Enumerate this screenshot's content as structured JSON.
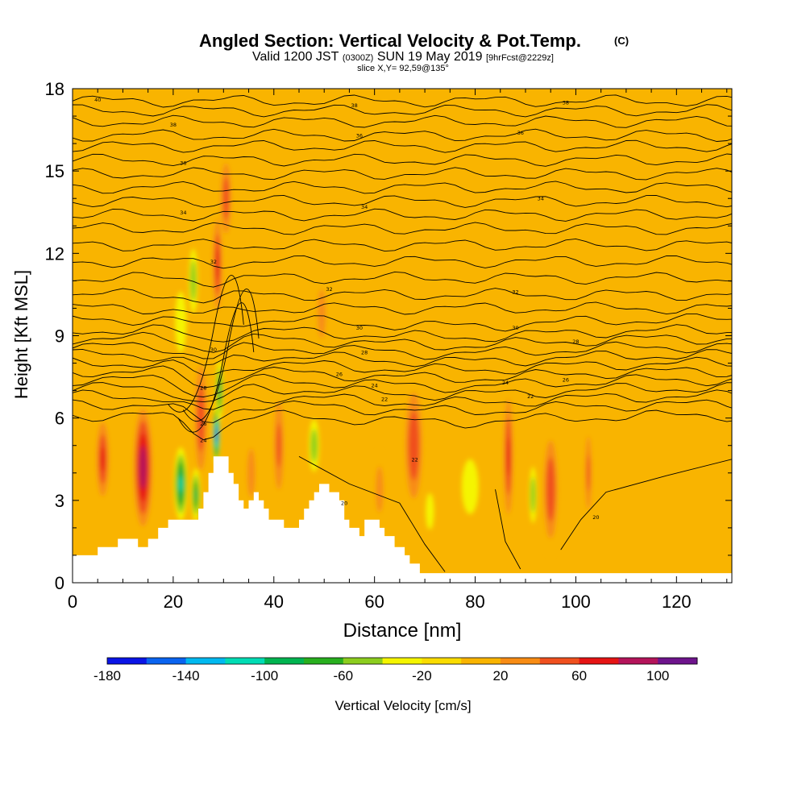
{
  "chart_data": {
    "type": "heatmap",
    "title": "Angled Section: Vertical Velocity & Pot.Temp.",
    "title_suffix": "(C)",
    "subtitle_main_a": "Valid 1200 JST",
    "subtitle_small_a": "(0300Z)",
    "subtitle_main_b": "SUN 19 May 2019",
    "subtitle_small_b": "[9hrFcst@2229z]",
    "slice_label": "slice X,Y= 92,59@135°",
    "xlabel": "Distance [nm]",
    "ylabel": "Height [Kft MSL]",
    "xlim": [
      0,
      131
    ],
    "ylim": [
      0,
      18
    ],
    "x_ticks": [
      0,
      20,
      40,
      60,
      80,
      100,
      120
    ],
    "y_ticks": [
      0,
      3,
      6,
      9,
      12,
      15,
      18
    ],
    "colorbar": {
      "label": "Vertical Velocity [cm/s]",
      "tick_labels": [
        "-180",
        "-140",
        "-100",
        "-60",
        "-20",
        "20",
        "60",
        "100"
      ],
      "bins": [
        {
          "from": -180,
          "to": -160,
          "color": "#0a14e6"
        },
        {
          "from": -160,
          "to": -140,
          "color": "#0a64f0"
        },
        {
          "from": -140,
          "to": -120,
          "color": "#00b9f0"
        },
        {
          "from": -120,
          "to": -100,
          "color": "#00dcb4"
        },
        {
          "from": -100,
          "to": -80,
          "color": "#00b450"
        },
        {
          "from": -80,
          "to": -60,
          "color": "#28af1e"
        },
        {
          "from": -60,
          "to": -40,
          "color": "#8ccd1e"
        },
        {
          "from": -40,
          "to": -20,
          "color": "#f5f500"
        },
        {
          "from": -20,
          "to": 0,
          "color": "#fadc00"
        },
        {
          "from": 0,
          "to": 20,
          "color": "#f9b400"
        },
        {
          "from": 20,
          "to": 40,
          "color": "#f88c14"
        },
        {
          "from": 40,
          "to": 60,
          "color": "#f0501e"
        },
        {
          "from": 60,
          "to": 80,
          "color": "#e61414"
        },
        {
          "from": 80,
          "to": 100,
          "color": "#b4145a"
        },
        {
          "from": 100,
          "to": 120,
          "color": "#6e148c"
        }
      ]
    },
    "terrain": [
      [
        0,
        1.0
      ],
      [
        2,
        1.0
      ],
      [
        5,
        1.0
      ],
      [
        5,
        1.3
      ],
      [
        9,
        1.3
      ],
      [
        9,
        1.6
      ],
      [
        13,
        1.6
      ],
      [
        13,
        1.3
      ],
      [
        15,
        1.3
      ],
      [
        15,
        1.6
      ],
      [
        17,
        1.6
      ],
      [
        17,
        2.0
      ],
      [
        19,
        2.0
      ],
      [
        19,
        2.3
      ],
      [
        25,
        2.3
      ],
      [
        25,
        2.7
      ],
      [
        26,
        2.7
      ],
      [
        26,
        3.3
      ],
      [
        27,
        3.3
      ],
      [
        27,
        4.0
      ],
      [
        28,
        4.0
      ],
      [
        28,
        4.6
      ],
      [
        31,
        4.6
      ],
      [
        31,
        4.0
      ],
      [
        32,
        4.0
      ],
      [
        32,
        3.6
      ],
      [
        33,
        3.6
      ],
      [
        33,
        3.0
      ],
      [
        34,
        3.0
      ],
      [
        34,
        2.7
      ],
      [
        35,
        2.7
      ],
      [
        35,
        3.0
      ],
      [
        36,
        3.0
      ],
      [
        36,
        3.3
      ],
      [
        37,
        3.3
      ],
      [
        37,
        3.0
      ],
      [
        38,
        3.0
      ],
      [
        38,
        2.7
      ],
      [
        39,
        2.7
      ],
      [
        39,
        2.3
      ],
      [
        42,
        2.3
      ],
      [
        42,
        2.0
      ],
      [
        45,
        2.0
      ],
      [
        45,
        2.3
      ],
      [
        46,
        2.3
      ],
      [
        46,
        2.7
      ],
      [
        47,
        2.7
      ],
      [
        47,
        3.0
      ],
      [
        48,
        3.0
      ],
      [
        48,
        3.3
      ],
      [
        49,
        3.3
      ],
      [
        49,
        3.6
      ],
      [
        51,
        3.6
      ],
      [
        51,
        3.3
      ],
      [
        53,
        3.3
      ],
      [
        53,
        3.0
      ],
      [
        54,
        3.0
      ],
      [
        54,
        2.3
      ],
      [
        55,
        2.3
      ],
      [
        55,
        2.0
      ],
      [
        57,
        2.0
      ],
      [
        57,
        1.7
      ],
      [
        58,
        1.7
      ],
      [
        58,
        2.3
      ],
      [
        61,
        2.3
      ],
      [
        61,
        2.0
      ],
      [
        62,
        2.0
      ],
      [
        62,
        1.7
      ],
      [
        64,
        1.7
      ],
      [
        64,
        1.3
      ],
      [
        66,
        1.3
      ],
      [
        66,
        1.0
      ],
      [
        67,
        1.0
      ],
      [
        67,
        0.7
      ],
      [
        69,
        0.7
      ],
      [
        69,
        0.35
      ],
      [
        131,
        0.35
      ]
    ],
    "updrafts": [
      {
        "x": 6,
        "z": 4.5,
        "rx": 1.6,
        "rz": 1.8,
        "v": 70
      },
      {
        "x": 14,
        "z": 4.2,
        "rx": 2.2,
        "rz": 2.6,
        "v": 105
      },
      {
        "x": 25.5,
        "z": 6.0,
        "rx": 1.6,
        "rz": 2.6,
        "v": 65
      },
      {
        "x": 28.8,
        "z": 11.6,
        "rx": 1.2,
        "rz": 2.2,
        "v": 70
      },
      {
        "x": 30.5,
        "z": 14.0,
        "rx": 1.4,
        "rz": 1.8,
        "v": 60
      },
      {
        "x": 35.5,
        "z": 4.0,
        "rx": 1.2,
        "rz": 1.4,
        "v": 45
      },
      {
        "x": 41,
        "z": 5.0,
        "rx": 1.4,
        "rz": 2.4,
        "v": 50
      },
      {
        "x": 49.5,
        "z": 9.8,
        "rx": 1.2,
        "rz": 1.4,
        "v": 45
      },
      {
        "x": 61,
        "z": 3.4,
        "rx": 1.2,
        "rz": 1.4,
        "v": 40
      },
      {
        "x": 67.8,
        "z": 5.0,
        "rx": 2.2,
        "rz": 2.6,
        "v": 68
      },
      {
        "x": 86.6,
        "z": 4.6,
        "rx": 1.2,
        "rz": 2.8,
        "v": 70
      },
      {
        "x": 95,
        "z": 3.4,
        "rx": 1.8,
        "rz": 2.4,
        "v": 68
      },
      {
        "x": 102.5,
        "z": 4.0,
        "rx": 0.9,
        "rz": 2.0,
        "v": 50
      }
    ],
    "downdrafts": [
      {
        "x": 21.5,
        "z": 3.6,
        "rx": 1.6,
        "rz": 1.6,
        "v": -110
      },
      {
        "x": 24.5,
        "z": 3.2,
        "rx": 1.1,
        "rz": 1.2,
        "v": -90
      },
      {
        "x": 28.6,
        "z": 5.4,
        "rx": 0.8,
        "rz": 1.2,
        "v": -170
      },
      {
        "x": 29.2,
        "z": 7.0,
        "rx": 0.9,
        "rz": 1.4,
        "v": -90
      },
      {
        "x": 24,
        "z": 11.0,
        "rx": 1.2,
        "rz": 1.6,
        "v": -65
      },
      {
        "x": 48,
        "z": 5.0,
        "rx": 1.4,
        "rz": 1.3,
        "v": -65
      },
      {
        "x": 91.5,
        "z": 3.2,
        "rx": 1.0,
        "rz": 1.4,
        "v": -65
      },
      {
        "x": 79,
        "z": 3.5,
        "rx": 3.0,
        "rz": 1.8,
        "v": -35
      },
      {
        "x": 21.5,
        "z": 9.5,
        "rx": 2.0,
        "rz": 2.0,
        "v": -35
      },
      {
        "x": 71,
        "z": 2.6,
        "rx": 1.5,
        "rz": 1.2,
        "v": -35
      }
    ],
    "isentrope_labels": [
      {
        "x": 5,
        "z": 17.6,
        "text": "40"
      },
      {
        "x": 20,
        "z": 16.7,
        "text": "38"
      },
      {
        "x": 22,
        "z": 15.3,
        "text": "36"
      },
      {
        "x": 22,
        "z": 13.5,
        "text": "34"
      },
      {
        "x": 28,
        "z": 11.7,
        "text": "32"
      },
      {
        "x": 28,
        "z": 8.5,
        "text": "30"
      },
      {
        "x": 26,
        "z": 7.1,
        "text": "28"
      },
      {
        "x": 26,
        "z": 5.8,
        "text": "26"
      },
      {
        "x": 26,
        "z": 5.2,
        "text": "24"
      },
      {
        "x": 56,
        "z": 17.4,
        "text": "38"
      },
      {
        "x": 57,
        "z": 16.3,
        "text": "36"
      },
      {
        "x": 58,
        "z": 13.7,
        "text": "34"
      },
      {
        "x": 51,
        "z": 10.7,
        "text": "32"
      },
      {
        "x": 57,
        "z": 9.3,
        "text": "30"
      },
      {
        "x": 58,
        "z": 8.4,
        "text": "28"
      },
      {
        "x": 53,
        "z": 7.6,
        "text": "26"
      },
      {
        "x": 60,
        "z": 7.2,
        "text": "24"
      },
      {
        "x": 62,
        "z": 6.7,
        "text": "22"
      },
      {
        "x": 68,
        "z": 4.5,
        "text": "22"
      },
      {
        "x": 54,
        "z": 2.9,
        "text": "20"
      },
      {
        "x": 98,
        "z": 17.5,
        "text": "38"
      },
      {
        "x": 89,
        "z": 16.4,
        "text": "36"
      },
      {
        "x": 93,
        "z": 14.0,
        "text": "34"
      },
      {
        "x": 88,
        "z": 10.6,
        "text": "32"
      },
      {
        "x": 88,
        "z": 9.3,
        "text": "30"
      },
      {
        "x": 100,
        "z": 8.8,
        "text": "28"
      },
      {
        "x": 98,
        "z": 7.4,
        "text": "26"
      },
      {
        "x": 86,
        "z": 7.3,
        "text": "24"
      },
      {
        "x": 91,
        "z": 6.8,
        "text": "22"
      },
      {
        "x": 104,
        "z": 2.4,
        "text": "20"
      }
    ]
  }
}
